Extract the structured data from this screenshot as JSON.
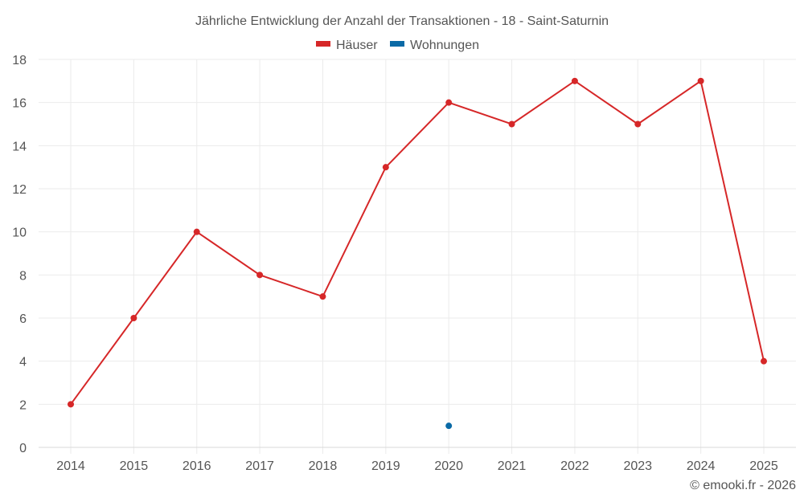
{
  "chart_data": {
    "type": "line",
    "title": "Jährliche Entwicklung der Anzahl der Transaktionen - 18 - Saint-Saturnin",
    "xlabel": "",
    "ylabel": "",
    "categories": [
      "2014",
      "2015",
      "2016",
      "2017",
      "2018",
      "2019",
      "2020",
      "2021",
      "2022",
      "2023",
      "2024",
      "2025"
    ],
    "series": [
      {
        "name": "Häuser",
        "color": "#d62728",
        "values": [
          2,
          6,
          10,
          8,
          7,
          13,
          16,
          15,
          17,
          15,
          17,
          4
        ]
      },
      {
        "name": "Wohnungen",
        "color": "#0a6aa6",
        "values": [
          null,
          null,
          null,
          null,
          null,
          null,
          1,
          null,
          null,
          null,
          null,
          null
        ]
      }
    ],
    "ylim": [
      0,
      18
    ],
    "yticks": [
      0,
      2,
      4,
      6,
      8,
      10,
      12,
      14,
      16,
      18
    ],
    "grid": true,
    "legend_position": "top"
  },
  "legend": {
    "items": [
      {
        "label": "Häuser",
        "color": "#d62728"
      },
      {
        "label": "Wohnungen",
        "color": "#0a6aa6"
      }
    ]
  },
  "credit": "© emooki.fr - 2026"
}
